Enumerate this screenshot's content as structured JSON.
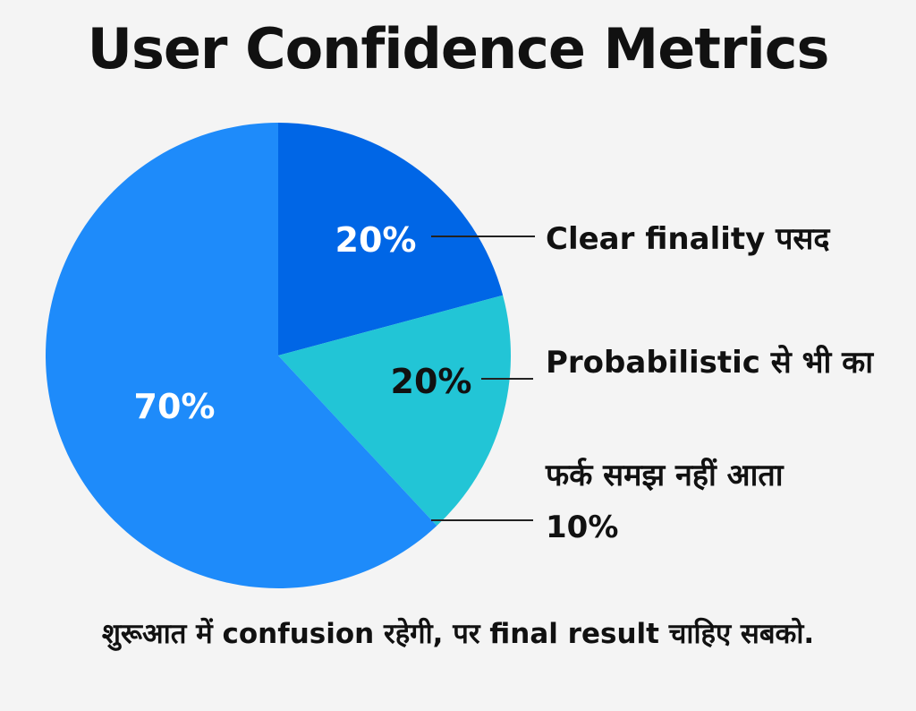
{
  "colors": {
    "background": "#f4f4f4",
    "text": "#111111",
    "leader": "#222222"
  },
  "chart_data": {
    "type": "pie",
    "title": "User Confidence Metrics",
    "slices": [
      {
        "label": "Clear finality पसद",
        "value_label": "20%",
        "value": 20,
        "color": "#0066e6",
        "text_color": "#ffffff"
      },
      {
        "label": "Probabilistic से भी का",
        "value_label": "20%",
        "value": 20,
        "color": "#22c5d6",
        "text_color": "#111111"
      },
      {
        "label": "फर्क समझ नहीं आता",
        "value_label": "10%",
        "value": 10,
        "color": "#1e8bfa",
        "text_color": "#111111"
      },
      {
        "label": "",
        "value_label": "70%",
        "value": 70,
        "color": "#1e8bfa",
        "text_color": "#ffffff"
      }
    ],
    "footnote": "शुरूआत में confusion रहेगी, पर final result चाहिए सबको."
  }
}
